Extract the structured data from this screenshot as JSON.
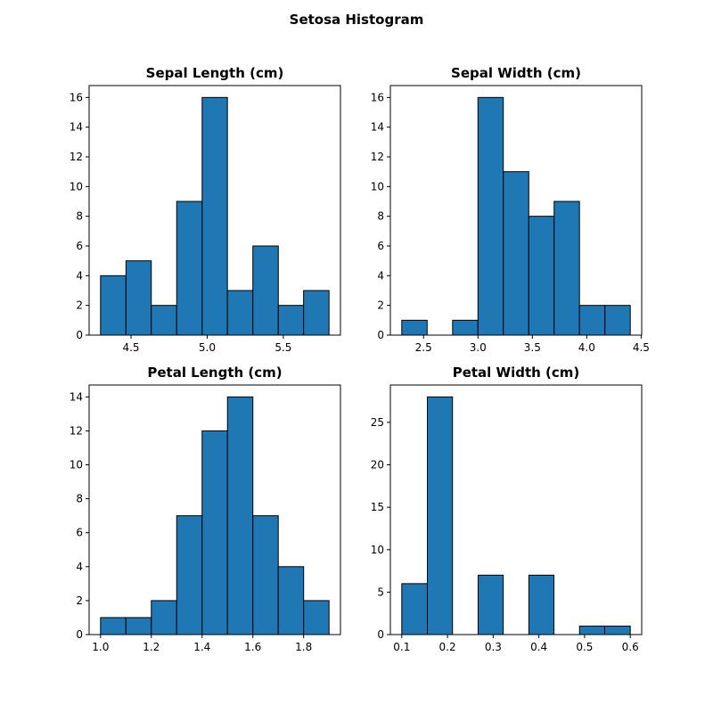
{
  "title": "Setosa Histogram",
  "chart_data": [
    {
      "type": "histogram",
      "title": "Sepal Length (cm)",
      "color": "#1f77b4",
      "bins": [
        4.3,
        4.467,
        4.633,
        4.8,
        4.967,
        5.133,
        5.3,
        5.467,
        5.633,
        5.8
      ],
      "values": [
        4,
        5,
        2,
        9,
        16,
        3,
        6,
        2,
        3
      ],
      "xlim": [
        4.225,
        5.875
      ],
      "ylim": [
        0,
        16.8
      ],
      "xticks": [
        4.5,
        {
          "value": 5.0,
          "label": "5.0"
        },
        5.5
      ],
      "yticks": [
        0,
        2,
        4,
        6,
        8,
        10,
        12,
        14,
        16
      ]
    },
    {
      "type": "histogram",
      "title": "Sepal Width (cm)",
      "color": "#1f77b4",
      "bins": [
        2.3,
        2.533,
        2.767,
        3.0,
        3.233,
        3.467,
        3.7,
        3.933,
        4.167,
        4.4
      ],
      "values": [
        1,
        0,
        1,
        16,
        11,
        8,
        9,
        2,
        2
      ],
      "xlim": [
        2.195,
        4.505
      ],
      "ylim": [
        0,
        16.8
      ],
      "xticks": [
        2.5,
        {
          "value": 3.0,
          "label": "3.0"
        },
        3.5,
        {
          "value": 4.0,
          "label": "4.0"
        },
        4.5
      ],
      "yticks": [
        0,
        2,
        4,
        6,
        8,
        10,
        12,
        14,
        16
      ]
    },
    {
      "type": "histogram",
      "title": "Petal Length (cm)",
      "color": "#1f77b4",
      "bins": [
        1.0,
        1.1,
        1.2,
        1.3,
        1.4,
        1.5,
        1.6,
        1.7,
        1.8,
        1.9
      ],
      "values": [
        1,
        1,
        2,
        7,
        12,
        14,
        7,
        4,
        2
      ],
      "xlim": [
        0.955,
        1.945
      ],
      "ylim": [
        0,
        14.7
      ],
      "xticks": [
        {
          "value": 1.0,
          "label": "1.0"
        },
        1.2,
        1.4,
        1.6,
        1.8
      ],
      "yticks": [
        0,
        2,
        4,
        6,
        8,
        10,
        12,
        14
      ]
    },
    {
      "type": "histogram",
      "title": "Petal Width (cm)",
      "color": "#1f77b4",
      "bins": [
        0.1,
        0.156,
        0.211,
        0.267,
        0.322,
        0.378,
        0.433,
        0.489,
        0.544,
        0.6
      ],
      "values": [
        6,
        28,
        0,
        7,
        0,
        7,
        0,
        1,
        1
      ],
      "xlim": [
        0.075,
        0.625
      ],
      "ylim": [
        0,
        29.4
      ],
      "xticks": [
        0.1,
        0.2,
        0.3,
        0.4,
        0.5,
        0.6
      ],
      "yticks": [
        0,
        5,
        10,
        15,
        20,
        25
      ]
    }
  ]
}
